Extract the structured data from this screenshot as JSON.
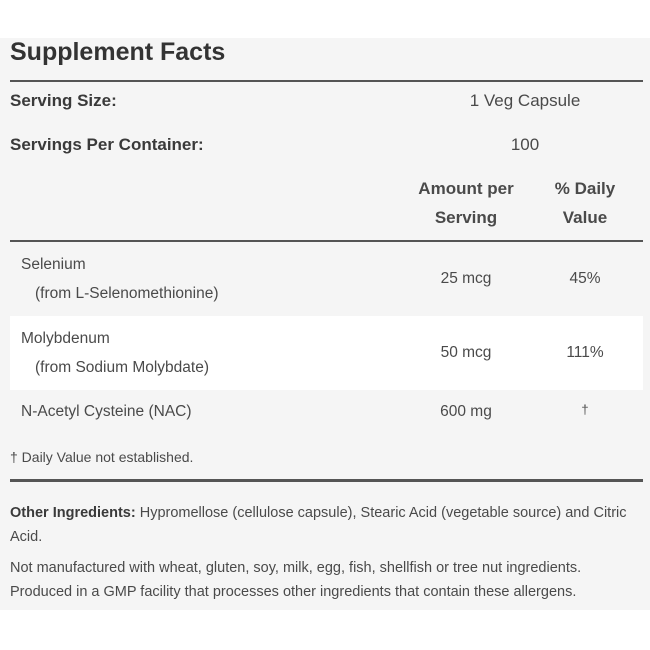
{
  "title": "Supplement Facts",
  "serving_size": {
    "label": "Serving Size:",
    "value": "1 Veg Capsule"
  },
  "servings_per_container": {
    "label": "Servings Per Container:",
    "value": "100"
  },
  "columns": {
    "amount_line1": "Amount per",
    "amount_line2": "Serving",
    "dv_line1": "% Daily",
    "dv_line2": "Value"
  },
  "nutrients": [
    {
      "name": "Selenium",
      "source": "(from L-Selenomethionine)",
      "amount": "25 mcg",
      "dv": "45%"
    },
    {
      "name": "Molybdenum",
      "source": "(from Sodium Molybdate)",
      "amount": "50 mcg",
      "dv": "111%"
    },
    {
      "name": "N-Acetyl Cysteine (NAC)",
      "source": "",
      "amount": "600 mg",
      "dv": "†"
    }
  ],
  "footnote": "† Daily Value not established.",
  "other_ingredients": {
    "label": "Other Ingredients:",
    "text": "Hypromellose (cellulose capsule), Stearic Acid (vegetable source) and Citric Acid."
  },
  "allergen_statement": "Not manufactured with wheat, gluten, soy, milk, egg, fish, shellfish or tree nut ingredients. Produced in a GMP facility that processes other ingredients that contain these allergens."
}
